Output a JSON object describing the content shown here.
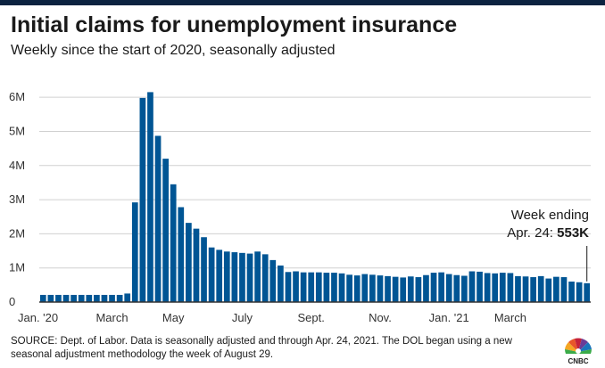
{
  "header": {
    "title": "Initial claims for unemployment insurance",
    "subtitle": "Weekly since the start of 2020, seasonally adjusted"
  },
  "chart_data": {
    "type": "bar",
    "title": "Initial claims for unemployment insurance",
    "subtitle": "Weekly since the start of 2020, seasonally adjusted",
    "xlabel": "",
    "ylabel": "",
    "unit": "claims",
    "ylim": [
      0,
      6500000
    ],
    "yticks": [
      {
        "value": 0,
        "label": "0"
      },
      {
        "value": 1000000,
        "label": "1M"
      },
      {
        "value": 2000000,
        "label": "2M"
      },
      {
        "value": 3000000,
        "label": "3M"
      },
      {
        "value": 4000000,
        "label": "4M"
      },
      {
        "value": 5000000,
        "label": "5M"
      },
      {
        "value": 6000000,
        "label": "6M"
      }
    ],
    "xticks": [
      {
        "index": 0,
        "label": "Jan. '20"
      },
      {
        "index": 9,
        "label": "March"
      },
      {
        "index": 17,
        "label": "May"
      },
      {
        "index": 26,
        "label": "July"
      },
      {
        "index": 35,
        "label": "Sept."
      },
      {
        "index": 44,
        "label": "Nov."
      },
      {
        "index": 53,
        "label": "Jan. '21"
      },
      {
        "index": 61,
        "label": "March"
      }
    ],
    "grid": true,
    "bar_color": "#005594",
    "values": [
      210000,
      210000,
      210000,
      210000,
      210000,
      210000,
      210000,
      210000,
      210000,
      210000,
      210000,
      250000,
      2920000,
      5980000,
      6150000,
      4870000,
      4200000,
      3450000,
      2780000,
      2320000,
      2150000,
      1900000,
      1600000,
      1530000,
      1480000,
      1460000,
      1440000,
      1420000,
      1480000,
      1400000,
      1230000,
      1070000,
      880000,
      900000,
      870000,
      870000,
      870000,
      860000,
      860000,
      840000,
      800000,
      780000,
      820000,
      800000,
      780000,
      760000,
      740000,
      720000,
      750000,
      730000,
      790000,
      860000,
      870000,
      820000,
      790000,
      770000,
      900000,
      890000,
      850000,
      840000,
      860000,
      850000,
      760000,
      750000,
      730000,
      760000,
      690000,
      740000,
      730000,
      600000,
      580000,
      553000
    ],
    "annotation": {
      "line1": "Week ending",
      "line2_prefix": "Apr. 24: ",
      "line2_value": "553K",
      "value": 553000
    }
  },
  "footer": {
    "source": "SOURCE: Dept. of Labor. Data is seasonally adjusted and through Apr. 24, 2021. The DOL began using a new seasonal adjustment methodology the week of August 29.",
    "logo_text": "CNBC"
  },
  "colors": {
    "brand_bar": "#0c2340",
    "bar": "#005594",
    "grid": "#d0d0d0",
    "axis": "#333333"
  }
}
